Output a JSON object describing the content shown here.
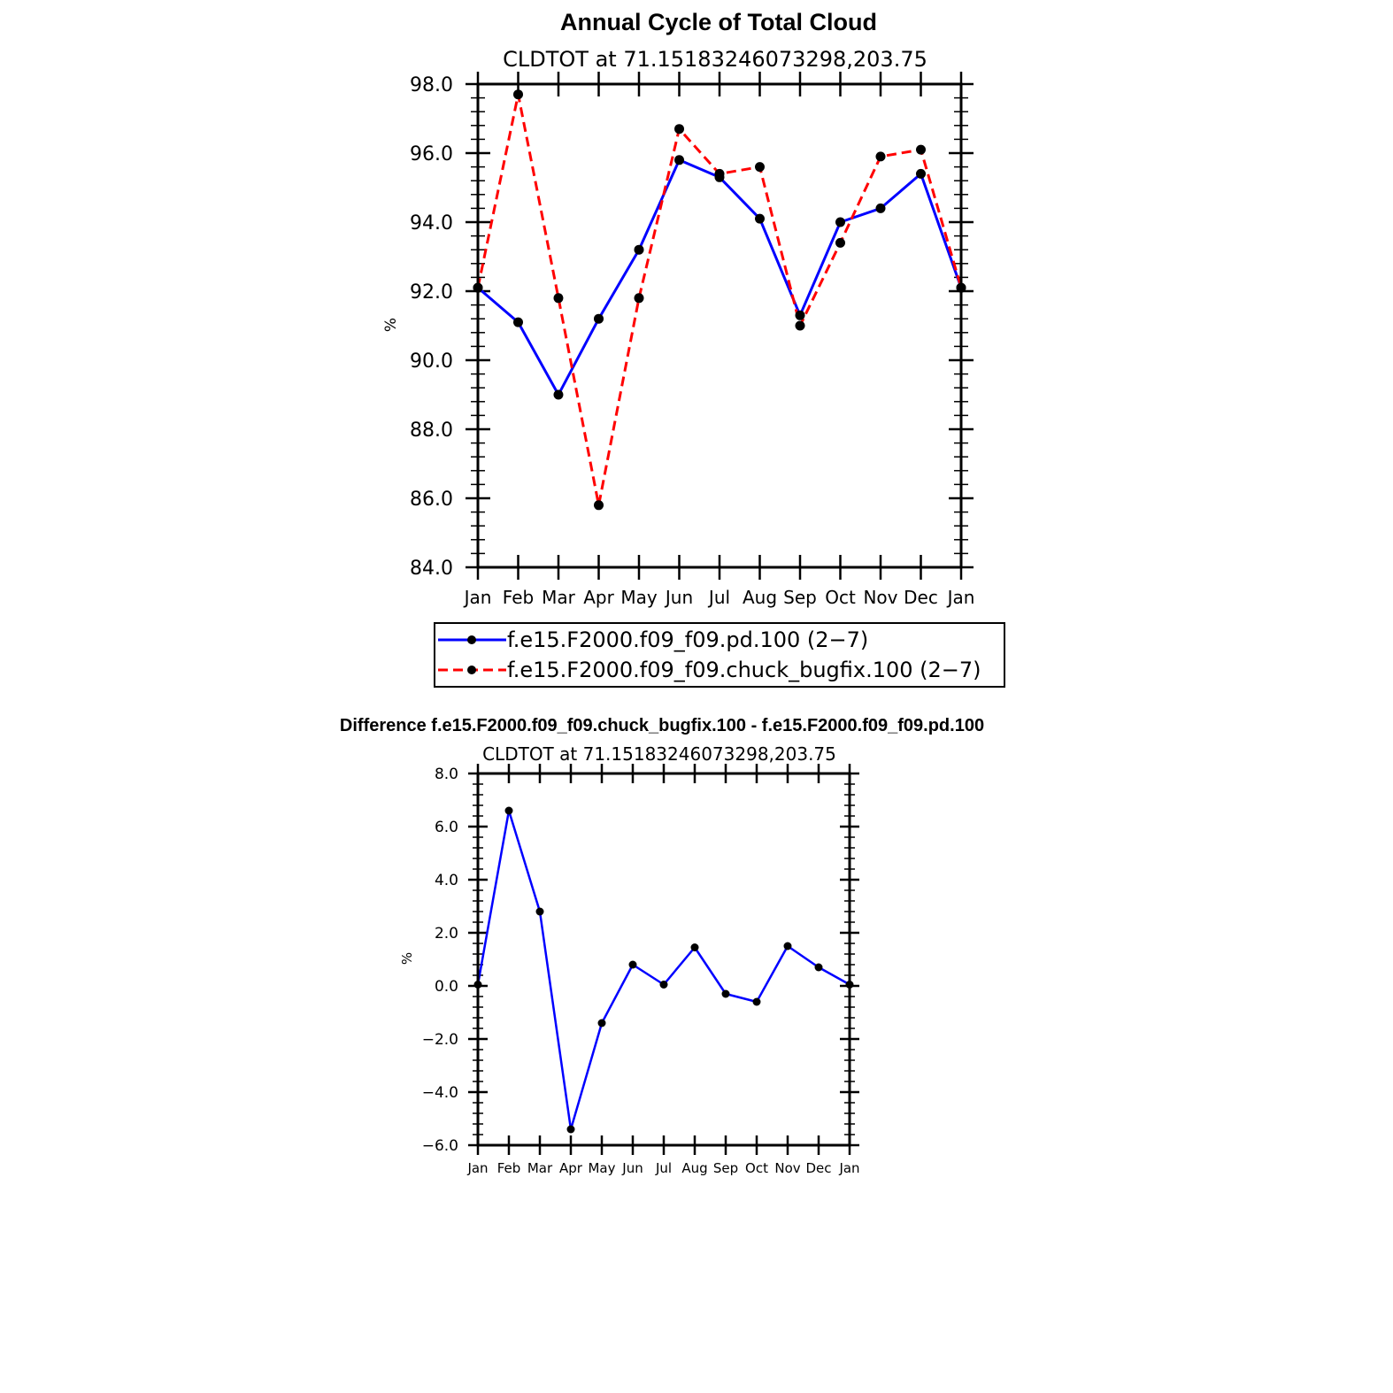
{
  "chart_data": [
    {
      "type": "line",
      "title": "Annual Cycle of Total Cloud",
      "subtitle": "CLDTOT at 71.15183246073298,203.75",
      "xlabel": "",
      "ylabel": "%",
      "categories": [
        "Jan",
        "Feb",
        "Mar",
        "Apr",
        "May",
        "Jun",
        "Jul",
        "Aug",
        "Sep",
        "Oct",
        "Nov",
        "Dec",
        "Jan"
      ],
      "ylim": [
        84.0,
        98.0
      ],
      "yticks": [
        "84.0",
        "86.0",
        "88.0",
        "90.0",
        "92.0",
        "94.0",
        "96.0",
        "98.0"
      ],
      "series": [
        {
          "name": "f.e15.F2000.f09_f09.pd.100 (2−7)",
          "color": "#0000ff",
          "dash": "solid",
          "values": [
            92.1,
            91.1,
            89.0,
            91.2,
            93.2,
            95.8,
            95.3,
            94.1,
            91.3,
            94.0,
            94.4,
            95.4,
            92.1
          ]
        },
        {
          "name": "f.e15.F2000.f09_f09.chuck_bugfix.100 (2−7)",
          "color": "#ff0000",
          "dash": "dashed",
          "values": [
            92.1,
            97.7,
            91.8,
            85.8,
            91.8,
            96.7,
            95.4,
            95.6,
            91.0,
            93.4,
            95.9,
            96.1,
            92.1
          ]
        }
      ]
    },
    {
      "type": "line",
      "title": "Difference f.e15.F2000.f09_f09.chuck_bugfix.100 - f.e15.F2000.f09_f09.pd.100",
      "subtitle": "CLDTOT at 71.15183246073298,203.75",
      "xlabel": "",
      "ylabel": "%",
      "categories": [
        "Jan",
        "Feb",
        "Mar",
        "Apr",
        "May",
        "Jun",
        "Jul",
        "Aug",
        "Sep",
        "Oct",
        "Nov",
        "Dec",
        "Jan"
      ],
      "ylim": [
        -6.0,
        8.0
      ],
      "yticks": [
        "−6.0",
        "−4.0",
        "−2.0",
        "0.0",
        "2.0",
        "4.0",
        "6.0",
        "8.0"
      ],
      "series": [
        {
          "name": "difference",
          "color": "#0000ff",
          "dash": "solid",
          "values": [
            0.05,
            6.6,
            2.8,
            -5.4,
            -1.4,
            0.8,
            0.05,
            1.45,
            -0.3,
            -0.6,
            1.5,
            0.7,
            0.05
          ]
        }
      ]
    }
  ]
}
